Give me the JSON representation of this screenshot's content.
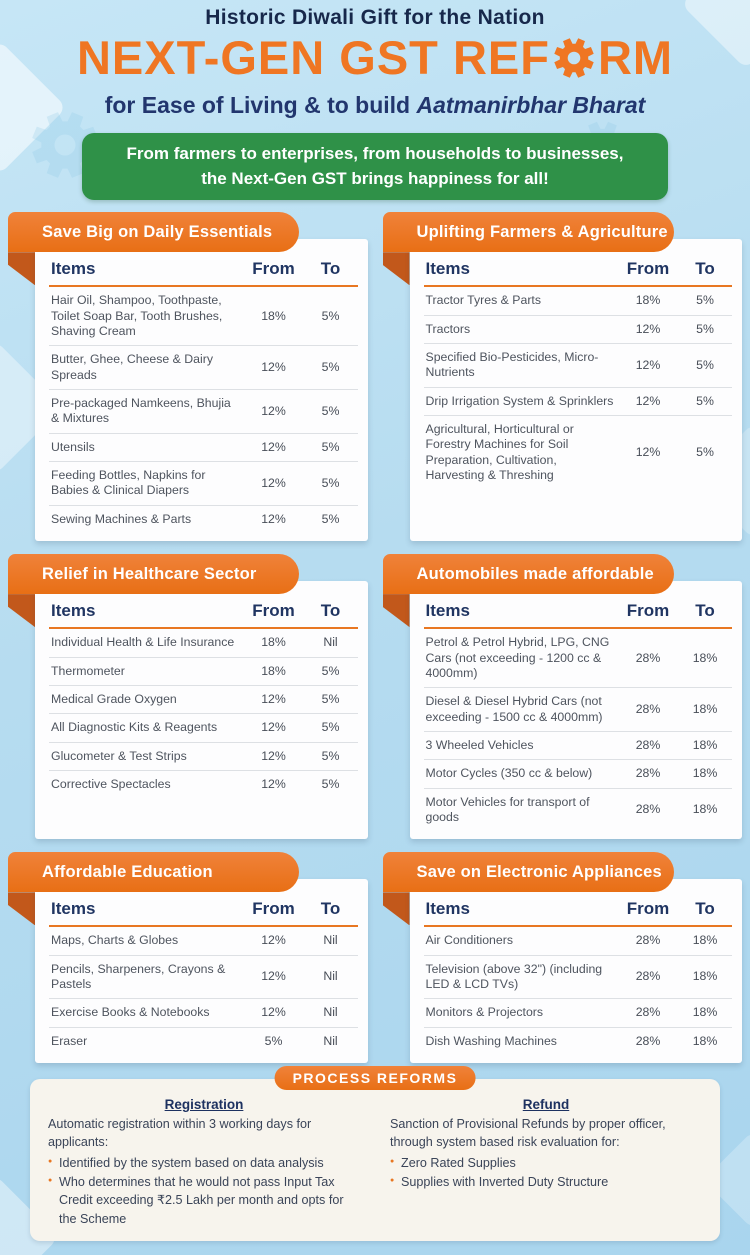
{
  "colors": {
    "orange": "#ed7723",
    "orange_dark_fold": "#c2581b",
    "green": "#2f9148",
    "navy": "#203562",
    "background_blue": "#b6dcf0",
    "process_card_bg": "#f7f4ed"
  },
  "header": {
    "tagline": "Historic Diwali Gift for the Nation",
    "title_before_gear": "NEXT-GEN GST REF",
    "title_after_gear": "RM",
    "subtitle_regular": "for Ease of Living & to build ",
    "subtitle_italic": "Aatmanirbhar Bharat"
  },
  "banner": {
    "line1": "From farmers to enterprises, from households to businesses,",
    "line2": "the Next-Gen GST brings happiness for all!"
  },
  "table_columns": [
    "Items",
    "From",
    "To"
  ],
  "panels": [
    {
      "title": "Save Big on Daily Essentials",
      "rows": [
        [
          "Hair Oil, Shampoo, Toothpaste, Toilet Soap Bar, Tooth Brushes, Shaving Cream",
          "18%",
          "5%"
        ],
        [
          "Butter, Ghee, Cheese & Dairy Spreads",
          "12%",
          "5%"
        ],
        [
          "Pre-packaged Namkeens, Bhujia & Mixtures",
          "12%",
          "5%"
        ],
        [
          "Utensils",
          "12%",
          "5%"
        ],
        [
          "Feeding Bottles, Napkins for Babies & Clinical Diapers",
          "12%",
          "5%"
        ],
        [
          "Sewing Machines & Parts",
          "12%",
          "5%"
        ]
      ]
    },
    {
      "title": "Uplifting Farmers & Agriculture",
      "rows": [
        [
          "Tractor Tyres & Parts",
          "18%",
          "5%"
        ],
        [
          "Tractors",
          "12%",
          "5%"
        ],
        [
          "Specified Bio-Pesticides, Micro-Nutrients",
          "12%",
          "5%"
        ],
        [
          "Drip Irrigation System & Sprinklers",
          "12%",
          "5%"
        ],
        [
          "Agricultural, Horticultural or Forestry Machines for Soil Preparation, Cultivation, Harvesting & Threshing",
          "12%",
          "5%"
        ]
      ]
    },
    {
      "title": "Relief in Healthcare Sector",
      "rows": [
        [
          "Individual Health & Life Insurance",
          "18%",
          "Nil"
        ],
        [
          "Thermometer",
          "18%",
          "5%"
        ],
        [
          "Medical Grade Oxygen",
          "12%",
          "5%"
        ],
        [
          "All Diagnostic Kits & Reagents",
          "12%",
          "5%"
        ],
        [
          "Glucometer & Test Strips",
          "12%",
          "5%"
        ],
        [
          "Corrective Spectacles",
          "12%",
          "5%"
        ]
      ]
    },
    {
      "title": "Automobiles made affordable",
      "rows": [
        [
          "Petrol & Petrol Hybrid, LPG, CNG Cars (not exceeding - 1200 cc & 4000mm)",
          "28%",
          "18%"
        ],
        [
          "Diesel & Diesel Hybrid Cars (not exceeding - 1500 cc & 4000mm)",
          "28%",
          "18%"
        ],
        [
          "3 Wheeled Vehicles",
          "28%",
          "18%"
        ],
        [
          "Motor Cycles (350 cc & below)",
          "28%",
          "18%"
        ],
        [
          "Motor Vehicles for transport of goods",
          "28%",
          "18%"
        ]
      ]
    },
    {
      "title": "Affordable Education",
      "rows": [
        [
          "Maps, Charts & Globes",
          "12%",
          "Nil"
        ],
        [
          "Pencils, Sharpeners, Crayons & Pastels",
          "12%",
          "Nil"
        ],
        [
          "Exercise Books & Notebooks",
          "12%",
          "Nil"
        ],
        [
          "Eraser",
          "5%",
          "Nil"
        ]
      ]
    },
    {
      "title": "Save on Electronic Appliances",
      "rows": [
        [
          "Air Conditioners",
          "28%",
          "18%"
        ],
        [
          "Television (above 32\") (including LED & LCD TVs)",
          "28%",
          "18%"
        ],
        [
          "Monitors & Projectors",
          "28%",
          "18%"
        ],
        [
          "Dish Washing Machines",
          "28%",
          "18%"
        ]
      ]
    }
  ],
  "process_reforms": {
    "badge": "PROCESS REFORMS",
    "registration": {
      "heading": "Registration",
      "intro": "Automatic registration within 3 working days for applicants:",
      "bullets": [
        "Identified by the system based on data analysis",
        "Who determines that he would not pass Input Tax Credit exceeding ₹2.5 Lakh per month and opts for the Scheme"
      ]
    },
    "refund": {
      "heading": "Refund",
      "intro": "Sanction of Provisional Refunds by proper officer, through system based risk evaluation for:",
      "bullets": [
        "Zero Rated Supplies",
        "Supplies with Inverted Duty Structure"
      ]
    }
  }
}
